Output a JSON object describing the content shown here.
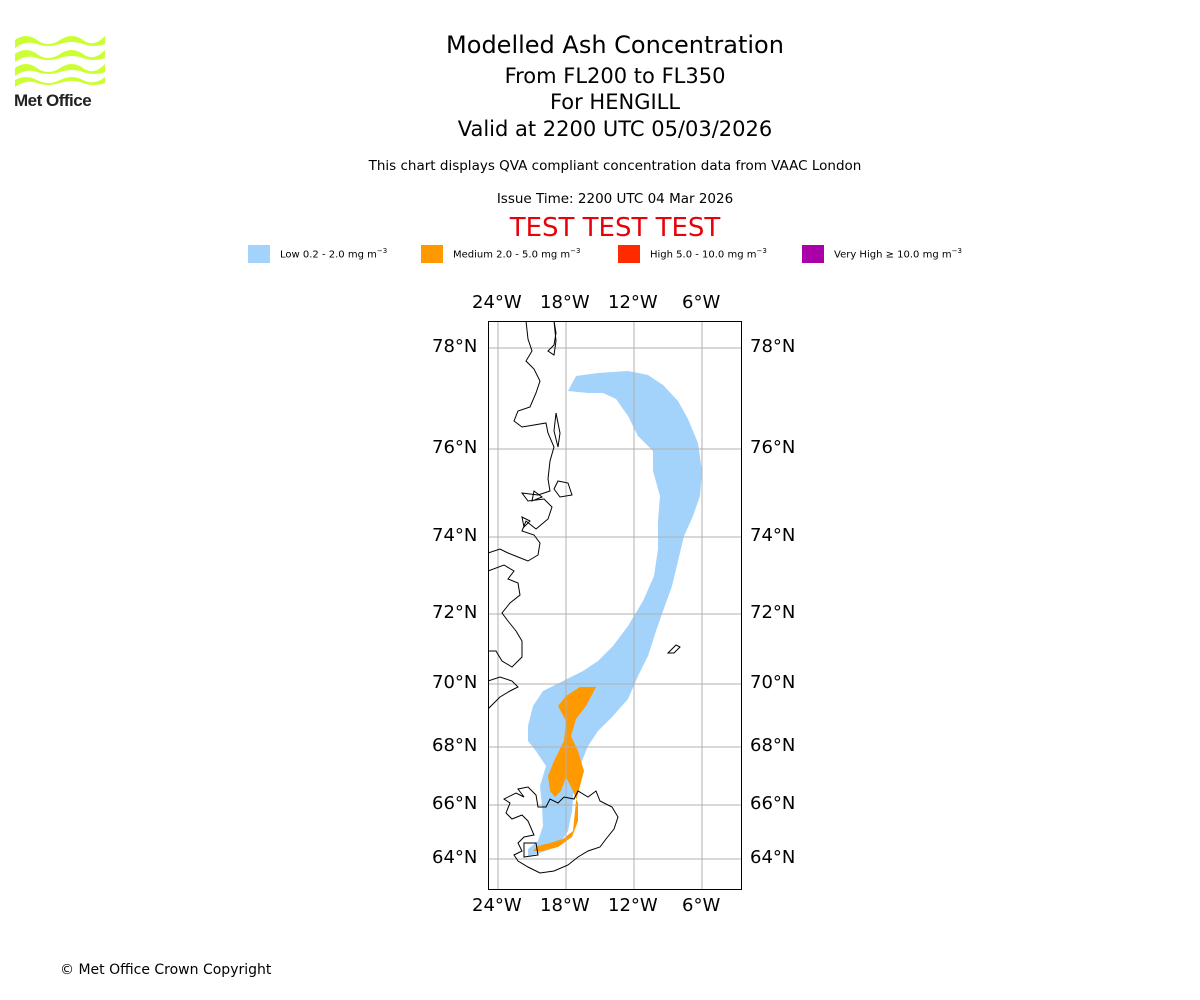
{
  "logo": {
    "text": "Met Office",
    "icon": "met-office-waves-icon",
    "color": "#ccff33"
  },
  "title": {
    "line1": "Modelled Ash Concentration",
    "line2": "From FL200 to FL350",
    "line3": "For HENGILL",
    "line4": "Valid at 2200 UTC 05/03/2026"
  },
  "subtitle": "This chart displays QVA compliant concentration data from VAAC London",
  "issue_time": "Issue Time: 2200 UTC 04 Mar 2026",
  "test_banner": "TEST TEST TEST",
  "legend": [
    {
      "label": "Low 0.2 - 2.0 mg m",
      "exp": "−3",
      "color": "#a3d3fb"
    },
    {
      "label": "Medium 2.0 - 5.0 mg m",
      "exp": "−3",
      "color": "#ff9900"
    },
    {
      "label": "High 5.0 - 10.0 mg m",
      "exp": "−3",
      "color": "#ff2a00"
    },
    {
      "label": "Very High  ≥  10.0 mg m",
      "exp": "−3",
      "color": "#aa00aa"
    }
  ],
  "map": {
    "lon_labels": [
      "24°W",
      "18°W",
      "12°W",
      "6°W"
    ],
    "lat_labels": [
      "78°N",
      "76°N",
      "74°N",
      "72°N",
      "70°N",
      "68°N",
      "66°N",
      "64°N"
    ]
  },
  "copyright": "© Met Office Crown Copyright"
}
